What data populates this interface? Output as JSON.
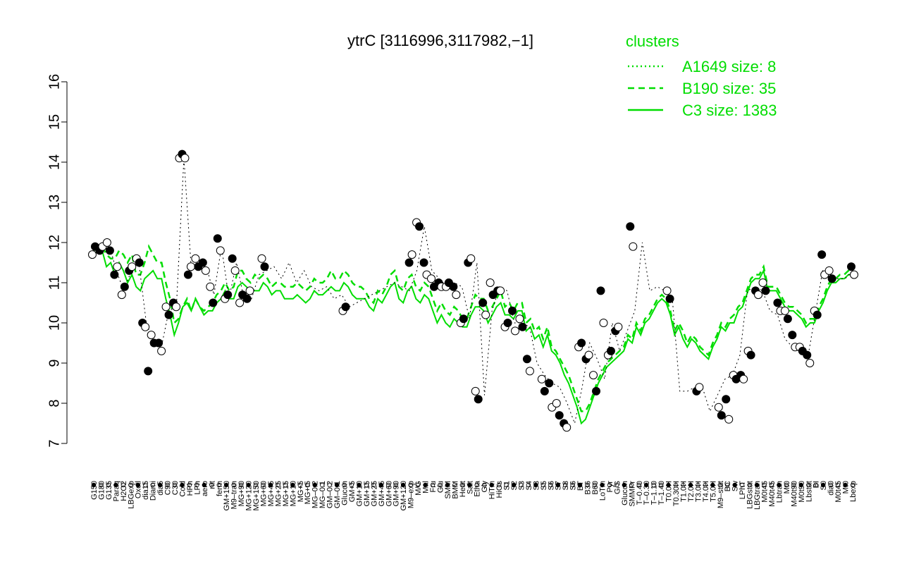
{
  "chart_data": {
    "type": "line",
    "title": "ytrC [3116996,3117982,−1]",
    "ylim": [
      7,
      16
    ],
    "yticks": [
      7,
      8,
      9,
      10,
      11,
      12,
      13,
      14,
      15,
      16
    ],
    "grid": false,
    "legend": {
      "title": "clusters",
      "placement": "top-right",
      "color": "#00dd00",
      "entries": [
        {
          "label": "A1649 size: 8",
          "style": "dotted"
        },
        {
          "label": "B190 size: 35",
          "style": "dashed"
        },
        {
          "label": "C3 size: 1383",
          "style": "solid"
        }
      ]
    },
    "x_tick_labels": [
      "G150",
      "G180",
      "G135",
      "Paraq",
      "H2O2",
      "LBGexp",
      "Oxctl",
      "dia15",
      "Diami",
      "dia5",
      "C90",
      "C30",
      "Cold",
      "HPh",
      "LPh",
      "aero",
      "nit",
      "ferm",
      "GM+150",
      "M9–tran",
      "MG+90",
      "MG+120",
      "MG+150",
      "MG+60",
      "MG+45",
      "MG+25",
      "MG+15",
      "MG+10",
      "MG+5",
      "MG+t5",
      "MG–0.2",
      "MG–0.1",
      "GM–0.2",
      "GM–0.1",
      "Glucon",
      "GM+5",
      "GM+10",
      "GM+15",
      "GM+25",
      "GM+45",
      "GM+60",
      "GM+90",
      "GM+120",
      "M9–exp",
      "M/G",
      "Mal",
      "Fru",
      "Glu",
      "SMM",
      "BMM",
      "Heat",
      "Salt",
      "Etha",
      "Gly",
      "HiTm",
      "HiOs",
      "S1",
      "S2",
      "S3",
      "S4",
      "S3",
      "S5",
      "S6",
      "S7",
      "S8",
      "S6",
      "BT",
      "B36",
      "B60",
      "LoTm",
      "Pyr",
      "G/S",
      "Glucon",
      "SMMPr",
      "T–0.40",
      "T–0.30",
      "T–1.10",
      "T–1.40",
      "T0.0H",
      "T0.30H",
      "T1.0H",
      "T2.0H",
      "T3.0H",
      "T4.0H",
      "T5.0H",
      "M9–stat",
      "BC",
      "Sw",
      "LPhT",
      "LBGstat",
      "LBGtran",
      "M0t45",
      "M40t45",
      "Lbtran",
      "Mt0",
      "M40t90",
      "M0t90",
      "Lbstat",
      "BI",
      "S0",
      "dia0",
      "M0t45",
      "Mt0",
      "Lbexp"
    ],
    "series": [
      {
        "style": "solid",
        "color": "#00dd00",
        "values": [
          11.7,
          11.8,
          11.8,
          11.4,
          11.5,
          11.2,
          11.5,
          11.3,
          11.0,
          11.2,
          10.9,
          10.8,
          11.1,
          11.2,
          11.3,
          11.1,
          11.1,
          10.6,
          10.2,
          9.7,
          10.0,
          10.4,
          10.5,
          10.3,
          10.6,
          10.4,
          10.2,
          10.3,
          10.3,
          10.5,
          10.6,
          10.8,
          10.6,
          10.6,
          10.9,
          11.0,
          10.9,
          10.8,
          10.8,
          10.8,
          11.0,
          10.9,
          10.7,
          10.8,
          10.8,
          10.6,
          10.6,
          10.6,
          10.7,
          10.6,
          10.5,
          10.6,
          10.8,
          10.7,
          10.7,
          10.8,
          10.9,
          10.8,
          10.8,
          11.0,
          10.9,
          10.7,
          10.6,
          10.6,
          10.6,
          10.4,
          10.3,
          10.6,
          10.5,
          10.7,
          10.9,
          11.0,
          10.6,
          10.5,
          10.8,
          10.9,
          10.6,
          10.5,
          10.7,
          10.6,
          10.3,
          10.0,
          10.2,
          10.0,
          9.9,
          10.1,
          10.0,
          9.9,
          9.9,
          10.2,
          10.4,
          10.4,
          10.3,
          10.0,
          10.2,
          10.4,
          10.5,
          10.2,
          10.2,
          10.1,
          10.3,
          10.3,
          9.8,
          9.9,
          9.6,
          9.7,
          9.4,
          9.7,
          9.3,
          9.2,
          9.0,
          8.7,
          8.5,
          8.2,
          7.9,
          7.5,
          7.6,
          7.9,
          8.2,
          8.5,
          8.7,
          8.9,
          9.0,
          9.1,
          9.2,
          9.3,
          9.6,
          9.5,
          9.9,
          9.7,
          10.0,
          10.1,
          10.3,
          10.5,
          10.6,
          10.5,
          10.2,
          9.7,
          9.9,
          9.6,
          9.4,
          9.6,
          9.5,
          9.3,
          9.2,
          9.1,
          9.4,
          9.6,
          9.9,
          9.8,
          10.0,
          10.0,
          10.3,
          10.4,
          10.7,
          11.0,
          11.1,
          11.1,
          11.3,
          10.8,
          10.8,
          10.8,
          10.6,
          10.4,
          10.3,
          10.3,
          10.2,
          10.1,
          9.9,
          10.0,
          10.0,
          10.3,
          10.5,
          10.8,
          11.0,
          11.0,
          11.1,
          11.1,
          11.2,
          11.2
        ]
      },
      {
        "style": "dashed",
        "color": "#00dd00",
        "values": [
          11.8,
          11.9,
          11.9,
          11.7,
          11.6,
          11.6,
          11.8,
          11.7,
          11.5,
          11.7,
          11.2,
          11.2,
          11.5,
          11.9,
          11.7,
          11.5,
          11.5,
          11.0,
          10.6,
          10.0,
          10.1,
          10.4,
          10.6,
          10.3,
          10.6,
          10.4,
          10.3,
          10.4,
          10.5,
          10.7,
          10.8,
          11.0,
          10.8,
          10.9,
          11.3,
          11.3,
          11.1,
          11.0,
          11.2,
          11.1,
          11.2,
          11.1,
          10.9,
          11.0,
          11.0,
          10.9,
          10.9,
          10.9,
          11.0,
          10.9,
          10.8,
          10.9,
          11.1,
          11.0,
          11.0,
          11.1,
          11.3,
          11.1,
          11.1,
          11.3,
          11.2,
          11.0,
          10.9,
          10.9,
          10.8,
          10.6,
          10.5,
          10.8,
          10.7,
          10.9,
          11.2,
          11.3,
          10.9,
          10.8,
          11.1,
          11.2,
          10.9,
          10.8,
          11.0,
          10.9,
          10.6,
          10.3,
          10.5,
          10.3,
          10.2,
          10.4,
          10.3,
          10.1,
          10.1,
          10.4,
          10.7,
          10.6,
          10.6,
          10.3,
          10.4,
          10.6,
          10.8,
          10.4,
          10.5,
          10.3,
          10.5,
          10.5,
          10.0,
          10.1,
          9.8,
          9.9,
          9.6,
          9.9,
          9.4,
          9.3,
          9.1,
          8.9,
          8.7,
          8.4,
          8.1,
          7.8,
          7.8,
          8.0,
          8.3,
          8.6,
          8.8,
          9.0,
          9.1,
          9.2,
          9.3,
          9.4,
          9.7,
          9.6,
          10.0,
          9.8,
          10.1,
          10.2,
          10.4,
          10.6,
          10.7,
          10.6,
          10.3,
          9.8,
          10.0,
          9.8,
          9.5,
          9.7,
          9.6,
          9.4,
          9.3,
          9.2,
          9.5,
          9.7,
          10.0,
          9.9,
          10.1,
          10.2,
          10.4,
          10.5,
          10.8,
          11.1,
          11.2,
          11.2,
          11.4,
          10.9,
          10.9,
          10.9,
          10.7,
          10.5,
          10.4,
          10.4,
          10.3,
          10.2,
          10.0,
          10.1,
          10.1,
          10.4,
          10.6,
          10.9,
          11.1,
          11.1,
          11.2,
          11.2,
          11.3,
          11.3
        ]
      },
      {
        "style": "dotted",
        "color": "#00dd00",
        "values": [
          11.7,
          11.9,
          12.0,
          11.3,
          10.8,
          11.3,
          11.5,
          10.0,
          9.5,
          9.4,
          10.3,
          10.4,
          14.1,
          11.3,
          11.5,
          11.4,
          10.7,
          11.9,
          10.6,
          11.5,
          10.6,
          10.6,
          11.2,
          11.3,
          11.4,
          11.1,
          11.5,
          11.0,
          11.3,
          10.9,
          10.8,
          10.9,
          10.6,
          10.7,
          10.4,
          10.5,
          10.6,
          10.7,
          10.8,
          10.9,
          11.0,
          10.9,
          10.8,
          11.3,
          12.4,
          11.3,
          11.1,
          10.9,
          11.0,
          10.9,
          10.1,
          11.5,
          8.2,
          10.3,
          10.9,
          10.8,
          10.0,
          10.0,
          9.9,
          9.0,
          8.7,
          8.5,
          8.4,
          8.0,
          7.5,
          8.4,
          9.5,
          9.1,
          8.6,
          10.0,
          9.3,
          9.8,
          10.3,
          12.0,
          10.8,
          10.9,
          10.8,
          10.6,
          8.3,
          8.3,
          8.4,
          8.4,
          7.8,
          8.2,
          8.6,
          8.7,
          9.2,
          10.8,
          10.9,
          10.8,
          10.3,
          10.2,
          9.6,
          9.4,
          9.3,
          9.1,
          10.2,
          11.3,
          11.2,
          11.1,
          11.1,
          11.3
        ]
      }
    ],
    "points": [
      {
        "x": "G150",
        "values": [
          11.7,
          11.9
        ]
      },
      {
        "x": "G180",
        "values": [
          11.8,
          11.9
        ]
      },
      {
        "x": "G135",
        "values": [
          12.0,
          11.8
        ]
      },
      {
        "x": "Paraq",
        "values": [
          11.2,
          11.4
        ]
      },
      {
        "x": "H2O2",
        "values": [
          10.7,
          10.9
        ]
      },
      {
        "x": "LBGexp",
        "values": [
          11.3,
          11.4
        ]
      },
      {
        "x": "Oxctl",
        "values": [
          11.6,
          11.5
        ]
      },
      {
        "x": "dia15",
        "values": [
          10.0,
          9.9,
          8.8
        ]
      },
      {
        "x": "Diami",
        "values": [
          9.7,
          9.5
        ]
      },
      {
        "x": "dia5",
        "values": [
          9.5,
          9.3
        ]
      },
      {
        "x": "C90",
        "values": [
          10.4,
          10.2
        ]
      },
      {
        "x": "C30",
        "values": [
          10.5,
          10.4
        ]
      },
      {
        "x": "Cold",
        "values": [
          14.1,
          14.2,
          14.1
        ]
      },
      {
        "x": "HPh",
        "values": [
          11.2,
          11.4
        ]
      },
      {
        "x": "LPh",
        "values": [
          11.6,
          11.4
        ]
      },
      {
        "x": "aero",
        "values": [
          11.5,
          11.3
        ]
      },
      {
        "x": "nit",
        "values": [
          10.9,
          10.5
        ]
      },
      {
        "x": "ferm",
        "values": [
          12.1,
          11.8
        ]
      },
      {
        "x": "GM+150",
        "values": [
          10.6,
          10.7
        ]
      },
      {
        "x": "M9–tran",
        "values": [
          11.6,
          11.3
        ]
      },
      {
        "x": "MG+90",
        "values": [
          10.5,
          10.7
        ]
      },
      {
        "x": "MG+120",
        "values": [
          10.6,
          10.8
        ]
      },
      {
        "x": "MG+60",
        "values": [
          11.6,
          11.4
        ]
      },
      {
        "x": "M9–exp",
        "values": [
          11.5,
          11.7
        ]
      },
      {
        "x": "M/G",
        "values": [
          12.5,
          12.4
        ]
      },
      {
        "x": "Mal",
        "values": [
          11.5,
          11.2
        ]
      },
      {
        "x": "Fru",
        "values": [
          11.1,
          10.9
        ]
      },
      {
        "x": "Glu",
        "values": [
          11.0,
          10.9
        ]
      },
      {
        "x": "SMM",
        "values": [
          10.9,
          11.0
        ]
      },
      {
        "x": "BMM",
        "values": [
          10.9,
          10.7
        ]
      },
      {
        "x": "Heat",
        "values": [
          10.0,
          10.1
        ]
      },
      {
        "x": "Salt",
        "values": [
          11.5,
          11.6
        ]
      },
      {
        "x": "Etha",
        "values": [
          8.3,
          8.1
        ]
      },
      {
        "x": "Gly",
        "values": [
          10.5,
          10.2
        ]
      },
      {
        "x": "HiTm",
        "values": [
          11.0,
          10.7
        ]
      },
      {
        "x": "HiOs",
        "values": [
          10.8,
          10.8
        ]
      },
      {
        "x": "S1",
        "values": [
          9.9,
          10.0
        ]
      },
      {
        "x": "S2",
        "values": [
          10.3,
          9.8
        ]
      },
      {
        "x": "S3",
        "values": [
          10.1,
          9.9
        ]
      },
      {
        "x": "S4",
        "values": [
          9.1,
          8.8
        ]
      },
      {
        "x": "S5",
        "values": [
          8.6,
          8.3
        ]
      },
      {
        "x": "S6",
        "values": [
          8.5,
          7.9
        ]
      },
      {
        "x": "S7",
        "values": [
          8.0,
          7.7
        ]
      },
      {
        "x": "S8",
        "values": [
          7.5,
          7.4
        ]
      },
      {
        "x": "BT",
        "values": [
          9.4,
          9.5
        ]
      },
      {
        "x": "B36",
        "values": [
          9.1,
          9.2
        ]
      },
      {
        "x": "B60",
        "values": [
          8.7,
          8.3
        ]
      },
      {
        "x": "LoTm",
        "values": [
          10.8,
          10.0
        ]
      },
      {
        "x": "Pyr",
        "values": [
          9.2,
          9.3
        ]
      },
      {
        "x": "G/S",
        "values": [
          9.8,
          9.9
        ]
      },
      {
        "x": "Glucon",
        "values": [
          10.3,
          10.4
        ]
      },
      {
        "x": "SMMPr",
        "values": [
          12.4,
          11.9
        ]
      },
      {
        "x": "T0.0H",
        "values": [
          10.8,
          10.6
        ]
      },
      {
        "x": "T3.0H",
        "values": [
          8.3,
          8.4
        ]
      },
      {
        "x": "M9–stat",
        "values": [
          7.9,
          7.7
        ]
      },
      {
        "x": "BC",
        "values": [
          8.1,
          7.6
        ]
      },
      {
        "x": "Sw",
        "values": [
          8.7,
          8.6
        ]
      },
      {
        "x": "LPhT",
        "values": [
          8.7,
          8.6
        ]
      },
      {
        "x": "LBGstat",
        "values": [
          9.3,
          9.2
        ]
      },
      {
        "x": "LBGtran",
        "values": [
          10.8,
          10.7
        ]
      },
      {
        "x": "M0t45",
        "values": [
          11.0,
          10.8
        ]
      },
      {
        "x": "Lbtran",
        "values": [
          10.5,
          10.3
        ]
      },
      {
        "x": "Mt0",
        "values": [
          10.3,
          10.1
        ]
      },
      {
        "x": "M40t90",
        "values": [
          9.7,
          9.4
        ]
      },
      {
        "x": "M0t90",
        "values": [
          9.4,
          9.3
        ]
      },
      {
        "x": "Lbstat",
        "values": [
          9.2,
          9.0
        ]
      },
      {
        "x": "BI",
        "values": [
          10.3,
          10.2
        ]
      },
      {
        "x": "S0",
        "values": [
          11.7,
          11.2
        ]
      },
      {
        "x": "dia0",
        "values": [
          11.3,
          11.1
        ]
      },
      {
        "x": "Lbexp",
        "values": [
          11.4,
          11.2
        ]
      }
    ]
  }
}
